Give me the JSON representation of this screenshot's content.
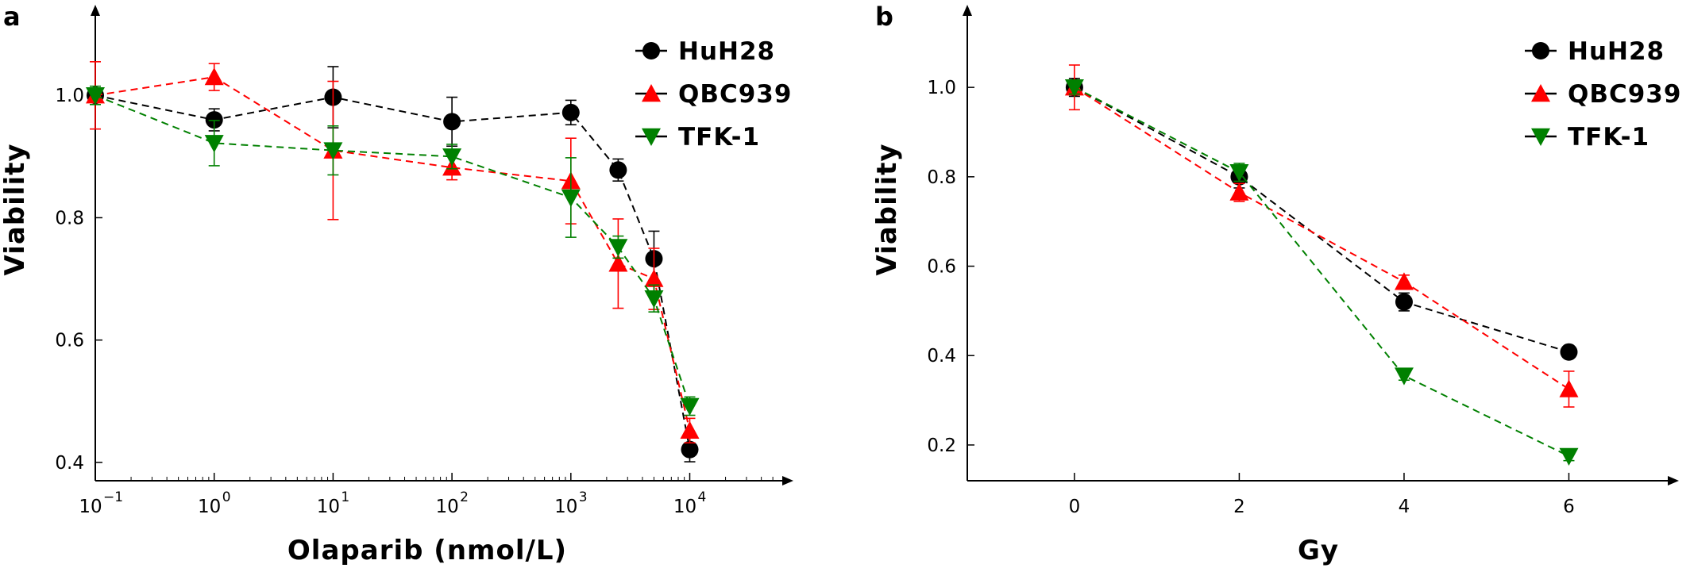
{
  "chart_data": [
    {
      "panel": "a",
      "type": "line",
      "xlabel": "Olaparib (nmol/L)",
      "ylabel": "Viability",
      "xscale": "log",
      "xlim": [
        0.1,
        60000
      ],
      "ylim": [
        0.37,
        1.13
      ],
      "x_ticks": [
        0.1,
        1,
        10,
        100,
        1000,
        10000
      ],
      "x_tick_labels": [
        {
          "base": "10",
          "exp": "−1"
        },
        {
          "base": "10",
          "exp": "0"
        },
        {
          "base": "10",
          "exp": "1"
        },
        {
          "base": "10",
          "exp": "2"
        },
        {
          "base": "10",
          "exp": "3"
        },
        {
          "base": "10",
          "exp": "4"
        }
      ],
      "y_ticks": [
        0.4,
        0.6,
        0.8,
        1.0
      ],
      "y_tick_labels": [
        "0.4",
        "0.6",
        "0.8",
        "1.0"
      ],
      "grid": false,
      "legend_position": "top-right",
      "series": [
        {
          "name": "HuH28",
          "color": "#000000",
          "marker": "circle",
          "x": [
            0.1,
            1,
            10,
            100,
            1000,
            2500,
            5000,
            10000
          ],
          "y": [
            1.0,
            0.96,
            0.997,
            0.957,
            0.972,
            0.878,
            0.733,
            0.421
          ],
          "err": [
            0.01,
            0.018,
            0.05,
            0.04,
            0.02,
            0.018,
            0.045,
            0.02
          ]
        },
        {
          "name": "QBC939",
          "color": "#ff0000",
          "marker": "triangle-up",
          "x": [
            0.1,
            1,
            10,
            100,
            1000,
            2500,
            5000,
            10000
          ],
          "y": [
            1.0,
            1.03,
            0.91,
            0.882,
            0.86,
            0.725,
            0.7,
            0.452
          ],
          "err": [
            0.055,
            0.022,
            0.113,
            0.02,
            0.07,
            0.073,
            0.05,
            0.02
          ]
        },
        {
          "name": "TFK-1",
          "color": "#008000",
          "marker": "triangle-down",
          "x": [
            0.1,
            1,
            10,
            100,
            1000,
            2500,
            5000,
            10000
          ],
          "y": [
            1.0,
            0.922,
            0.91,
            0.9,
            0.833,
            0.752,
            0.668,
            0.492
          ],
          "err": [
            0.015,
            0.037,
            0.04,
            0.02,
            0.065,
            0.018,
            0.022,
            0.015
          ]
        }
      ]
    },
    {
      "panel": "b",
      "type": "line",
      "xlabel": "Gy",
      "ylabel": "Viability",
      "xscale": "linear",
      "xlim": [
        -1.3,
        7.2
      ],
      "ylim": [
        0.12,
        1.16
      ],
      "x_ticks": [
        0,
        2,
        4,
        6
      ],
      "x_tick_labels": [
        "0",
        "2",
        "4",
        "6"
      ],
      "y_ticks": [
        0.2,
        0.4,
        0.6,
        0.8,
        1.0
      ],
      "y_tick_labels": [
        "0.2",
        "0.4",
        "0.6",
        "0.8",
        "1.0"
      ],
      "grid": false,
      "legend_position": "top-right",
      "series": [
        {
          "name": "HuH28",
          "color": "#000000",
          "marker": "circle",
          "x": [
            0,
            2,
            4,
            6
          ],
          "y": [
            1.0,
            0.8,
            0.52,
            0.408
          ],
          "err": [
            0.02,
            0.025,
            0.02,
            0.0
          ]
        },
        {
          "name": "QBC939",
          "color": "#ff0000",
          "marker": "triangle-up",
          "x": [
            0,
            2,
            4,
            6
          ],
          "y": [
            1.0,
            0.765,
            0.565,
            0.325
          ],
          "err": [
            0.05,
            0.02,
            0.015,
            0.04
          ]
        },
        {
          "name": "TFK-1",
          "color": "#008000",
          "marker": "triangle-down",
          "x": [
            0,
            2,
            4,
            6
          ],
          "y": [
            1.0,
            0.81,
            0.355,
            0.175
          ],
          "err": [
            0.015,
            0.02,
            0.01,
            0.01
          ]
        }
      ]
    }
  ]
}
